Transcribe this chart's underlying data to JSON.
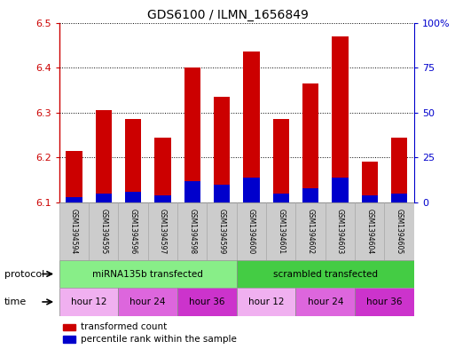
{
  "title": "GDS6100 / ILMN_1656849",
  "samples": [
    "GSM1394594",
    "GSM1394595",
    "GSM1394596",
    "GSM1394597",
    "GSM1394598",
    "GSM1394599",
    "GSM1394600",
    "GSM1394601",
    "GSM1394602",
    "GSM1394603",
    "GSM1394604",
    "GSM1394605"
  ],
  "transformed_counts": [
    6.215,
    6.305,
    6.285,
    6.245,
    6.4,
    6.335,
    6.435,
    6.285,
    6.365,
    6.47,
    6.19,
    6.245
  ],
  "percentile_ranks": [
    3,
    5,
    6,
    4,
    12,
    10,
    14,
    5,
    8,
    14,
    4,
    5
  ],
  "bar_base": 6.1,
  "ylim_left": [
    6.1,
    6.5
  ],
  "ylim_right": [
    0,
    100
  ],
  "yticks_left": [
    6.1,
    6.2,
    6.3,
    6.4,
    6.5
  ],
  "yticks_right": [
    0,
    25,
    50,
    75,
    100
  ],
  "ytick_labels_right": [
    "0",
    "25",
    "50",
    "75",
    "100%"
  ],
  "red_color": "#cc0000",
  "blue_color": "#0000cc",
  "bar_width": 0.55,
  "protocol_groups": [
    {
      "label": "miRNA135b transfected",
      "start": 0,
      "end": 6,
      "color": "#88ee88"
    },
    {
      "label": "scrambled transfected",
      "start": 6,
      "end": 12,
      "color": "#44cc44"
    }
  ],
  "time_groups": [
    {
      "label": "hour 12",
      "start": 0,
      "end": 2,
      "color": "#f0b0f0"
    },
    {
      "label": "hour 24",
      "start": 2,
      "end": 4,
      "color": "#dd66dd"
    },
    {
      "label": "hour 36",
      "start": 4,
      "end": 6,
      "color": "#cc33cc"
    },
    {
      "label": "hour 12",
      "start": 6,
      "end": 8,
      "color": "#f0b0f0"
    },
    {
      "label": "hour 24",
      "start": 8,
      "end": 10,
      "color": "#dd66dd"
    },
    {
      "label": "hour 36",
      "start": 10,
      "end": 12,
      "color": "#cc33cc"
    }
  ],
  "legend_items": [
    {
      "label": "transformed count",
      "color": "#cc0000"
    },
    {
      "label": "percentile rank within the sample",
      "color": "#0000cc"
    }
  ],
  "grid_color": "#000000",
  "tick_label_color_left": "#cc0000",
  "tick_label_color_right": "#0000cc",
  "protocol_label": "protocol",
  "time_label": "time",
  "sample_box_color": "#cccccc",
  "sample_box_edge": "#aaaaaa"
}
